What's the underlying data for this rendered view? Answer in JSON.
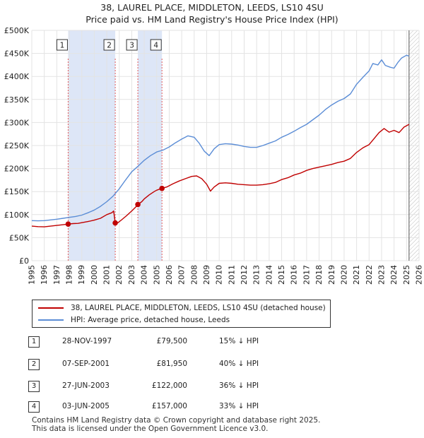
{
  "title_line1": "38, LAUREL PLACE, MIDDLETON, LEEDS, LS10 4SU",
  "title_line2": "Price paid vs. HM Land Registry's House Price Index (HPI)",
  "chart_data": {
    "type": "line",
    "xlim": [
      1995,
      2026
    ],
    "ylim": [
      0,
      500000
    ],
    "x_ticks": [
      1995,
      1996,
      1997,
      1998,
      1999,
      2000,
      2001,
      2002,
      2003,
      2004,
      2005,
      2006,
      2007,
      2008,
      2009,
      2010,
      2011,
      2012,
      2013,
      2014,
      2015,
      2016,
      2017,
      2018,
      2019,
      2020,
      2021,
      2022,
      2023,
      2024,
      2025,
      2026
    ],
    "y_ticks": [
      0,
      50000,
      100000,
      150000,
      200000,
      250000,
      300000,
      350000,
      400000,
      450000,
      500000
    ],
    "y_tick_labels": [
      "£0",
      "£50K",
      "£100K",
      "£150K",
      "£200K",
      "£250K",
      "£300K",
      "£350K",
      "£400K",
      "£450K",
      "£500K"
    ],
    "grid": true,
    "shaded_ranges": [
      [
        1997.91,
        2001.68
      ],
      [
        2003.49,
        2005.42
      ]
    ],
    "data_end_marker": 2025.2,
    "series": [
      {
        "name": "38, LAUREL PLACE, MIDDLETON, LEEDS, LS10 4SU (detached house)",
        "color": "#c00000",
        "x": [
          1995.0,
          1995.5,
          1996.0,
          1996.5,
          1997.0,
          1997.5,
          1997.91,
          1998.3,
          1998.7,
          1999.0,
          1999.5,
          2000.0,
          2000.5,
          2001.0,
          2001.4,
          2001.55,
          2001.68,
          2001.9,
          2002.2,
          2002.6,
          2003.0,
          2003.3,
          2003.49,
          2003.8,
          2004.0,
          2004.4,
          2004.8,
          2005.0,
          2005.42,
          2005.8,
          2006.3,
          2006.8,
          2007.3,
          2007.8,
          2008.2,
          2008.6,
          2009.0,
          2009.3,
          2009.6,
          2010.0,
          2010.5,
          2011.0,
          2011.5,
          2012.0,
          2012.5,
          2013.0,
          2013.5,
          2014.0,
          2014.5,
          2015.0,
          2015.5,
          2016.0,
          2016.5,
          2017.0,
          2017.5,
          2018.0,
          2018.5,
          2019.0,
          2019.5,
          2020.0,
          2020.5,
          2021.0,
          2021.5,
          2022.0,
          2022.4,
          2022.8,
          2023.2,
          2023.6,
          2024.0,
          2024.4,
          2024.8,
          2025.2
        ],
        "values": [
          75000,
          74000,
          73500,
          75000,
          76500,
          78000,
          79500,
          80500,
          81000,
          82500,
          85000,
          88000,
          92000,
          100000,
          104000,
          108000,
          81950,
          82500,
          89000,
          98000,
          108000,
          116000,
          122000,
          128000,
          134000,
          143000,
          150000,
          153000,
          157000,
          160000,
          167000,
          173000,
          178000,
          183000,
          184000,
          178000,
          166000,
          151000,
          160000,
          168000,
          169000,
          168000,
          166000,
          165000,
          164000,
          164000,
          165000,
          167000,
          170000,
          176000,
          180000,
          186000,
          190000,
          196000,
          200000,
          203000,
          206000,
          209000,
          213000,
          216000,
          222000,
          235000,
          245000,
          252000,
          265000,
          278000,
          287000,
          279000,
          283000,
          278000,
          290000,
          296000
        ]
      },
      {
        "name": "HPI: Average price, detached house, Leeds",
        "color": "#5b8dd6",
        "x": [
          1995.0,
          1995.5,
          1996.0,
          1996.5,
          1997.0,
          1997.5,
          1998.0,
          1998.5,
          1999.0,
          1999.5,
          2000.0,
          2000.5,
          2001.0,
          2001.5,
          2002.0,
          2002.5,
          2003.0,
          2003.5,
          2004.0,
          2004.5,
          2005.0,
          2005.5,
          2006.0,
          2006.5,
          2007.0,
          2007.5,
          2008.0,
          2008.4,
          2008.8,
          2009.2,
          2009.6,
          2010.0,
          2010.5,
          2011.0,
          2011.5,
          2012.0,
          2012.5,
          2013.0,
          2013.5,
          2014.0,
          2014.5,
          2015.0,
          2015.5,
          2016.0,
          2016.5,
          2017.0,
          2017.5,
          2018.0,
          2018.5,
          2019.0,
          2019.5,
          2020.0,
          2020.5,
          2021.0,
          2021.5,
          2022.0,
          2022.3,
          2022.7,
          2023.0,
          2023.3,
          2023.7,
          2024.0,
          2024.3,
          2024.6,
          2025.0,
          2025.2
        ],
        "values": [
          87000,
          86500,
          87000,
          88500,
          90000,
          92000,
          94000,
          96000,
          99000,
          104000,
          110000,
          118000,
          128000,
          140000,
          156000,
          175000,
          193000,
          205000,
          218000,
          228000,
          236000,
          240000,
          247000,
          256000,
          264000,
          271000,
          268000,
          255000,
          238000,
          228000,
          243000,
          252000,
          254000,
          253000,
          251000,
          248000,
          246000,
          246000,
          250000,
          255000,
          260000,
          268000,
          274000,
          281000,
          289000,
          296000,
          306000,
          316000,
          328000,
          338000,
          346000,
          352000,
          362000,
          383000,
          398000,
          412000,
          428000,
          425000,
          436000,
          424000,
          420000,
          418000,
          430000,
          440000,
          446000,
          444000
        ]
      }
    ],
    "sale_markers": [
      {
        "label": "1",
        "x": 1997.91,
        "y": 79500
      },
      {
        "label": "2",
        "x": 2001.68,
        "y": 81950
      },
      {
        "label": "3",
        "x": 2003.49,
        "y": 122000
      },
      {
        "label": "4",
        "x": 2005.42,
        "y": 157000
      }
    ]
  },
  "legend": {
    "items": [
      {
        "label": "38, LAUREL PLACE, MIDDLETON, LEEDS, LS10 4SU (detached house)",
        "color": "#c00000"
      },
      {
        "label": "HPI: Average price, detached house, Leeds",
        "color": "#5b8dd6"
      }
    ]
  },
  "sales": [
    {
      "num": "1",
      "date": "28-NOV-1997",
      "price": "£79,500",
      "hpi": "15% ↓ HPI"
    },
    {
      "num": "2",
      "date": "07-SEP-2001",
      "price": "£81,950",
      "hpi": "40% ↓ HPI"
    },
    {
      "num": "3",
      "date": "27-JUN-2003",
      "price": "£122,000",
      "hpi": "36% ↓ HPI"
    },
    {
      "num": "4",
      "date": "03-JUN-2005",
      "price": "£157,000",
      "hpi": "33% ↓ HPI"
    }
  ],
  "footer": {
    "line1": "Contains HM Land Registry data © Crown copyright and database right 2025.",
    "line2": "This data is licensed under the Open Government Licence v3.0."
  }
}
